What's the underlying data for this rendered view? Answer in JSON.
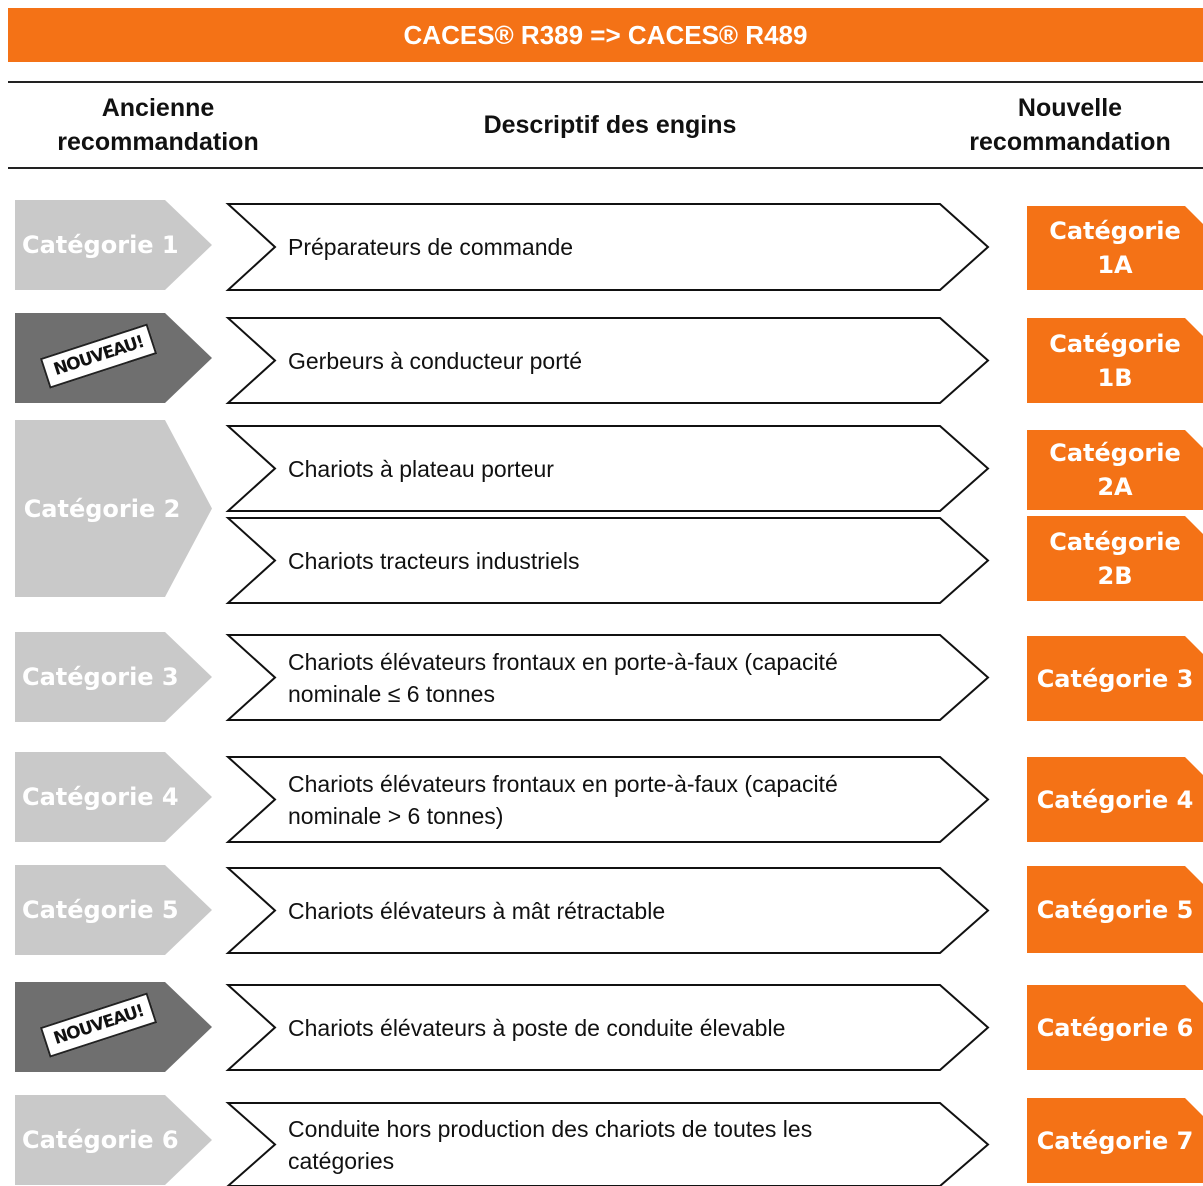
{
  "header": {
    "title": "CACES® R389 => CACES® R489",
    "columns": [
      "Ancienne recommandation",
      "Descriptif des engins",
      "Nouvelle recommandation"
    ]
  },
  "old_categories": [
    "Catégorie 1",
    "NOUVEAU!",
    "Catégorie 2",
    "Catégorie 3",
    "Catégorie 4",
    "Catégorie 5",
    "NOUVEAU!",
    "Catégorie 6"
  ],
  "descriptions": [
    "Préparateurs de commande",
    "Gerbeurs à conducteur porté",
    "Chariots à plateau porteur",
    "Chariots tracteurs industriels",
    "Chariots élévateurs frontaux en porte-à-faux (capacité nominale ≤ 6 tonnes",
    "Chariots élévateurs frontaux en porte-à-faux (capacité nominale > 6 tonnes)",
    "Chariots élévateurs à mât rétractable",
    "Chariots élévateurs à poste de conduite élevable",
    "Conduite hors production des chariots de toutes les catégories"
  ],
  "new_categories": [
    "Catégorie 1A",
    "Catégorie 1B",
    "Catégorie 2A",
    "Catégorie 2B",
    "Catégorie 3",
    "Catégorie 4",
    "Catégorie 5",
    "Catégorie 6",
    "Catégorie 7"
  ]
}
